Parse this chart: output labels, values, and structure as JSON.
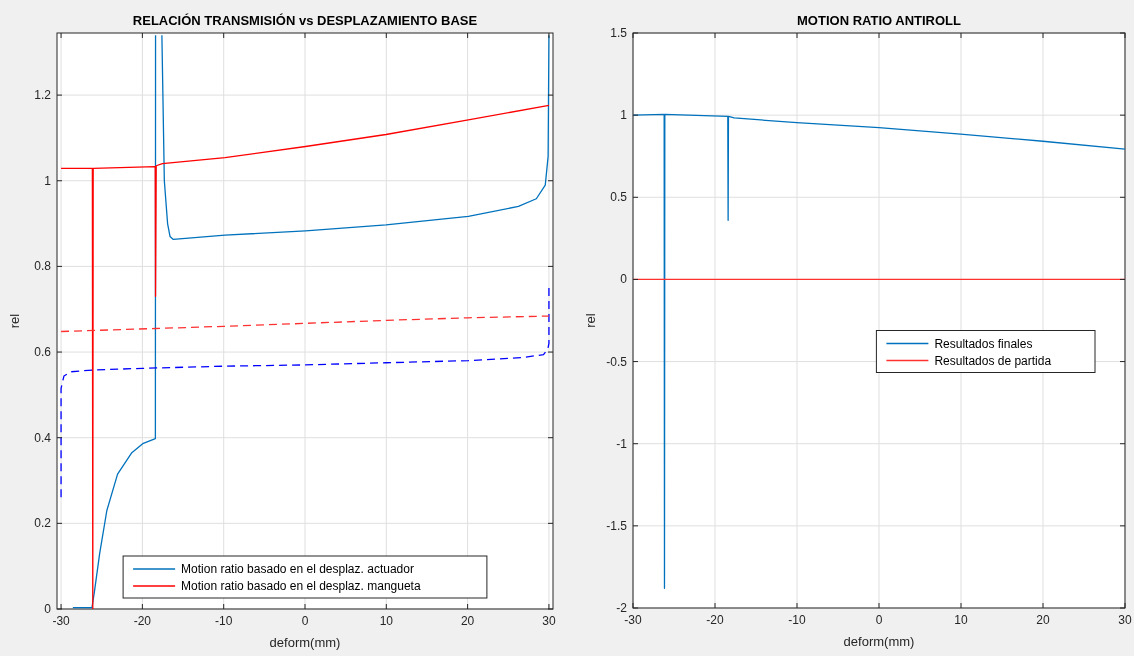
{
  "chart_data": [
    {
      "type": "line",
      "title": "RELACIÓN TRANSMISIÓN vs DESPLAZAMIENTO BASE",
      "xlabel": "deform(mm)",
      "ylabel": "rel",
      "xlim": [
        -30.5,
        30.5
      ],
      "ylim": [
        0,
        1.345
      ],
      "xticks": [
        -30,
        -20,
        -10,
        0,
        10,
        20,
        30
      ],
      "yticks": [
        0,
        0.2,
        0.4,
        0.6,
        0.8,
        1,
        1.2
      ],
      "grid": true,
      "legend": "bottom",
      "series": [
        {
          "name": "Motion ratio basado en el desplaz. actuador",
          "color": "#0072bd",
          "line_style": "solid",
          "x": [
            -28.55,
            -26.2,
            -25.9,
            -25.25,
            -24.37,
            -23.05,
            -21.3,
            -19.96,
            -18.4,
            -18.38,
            -17.9,
            -17.6,
            -17.3,
            -16.9,
            -16.6,
            -16.2,
            -9.84,
            0.06,
            9.96,
            20.09,
            26.25,
            28.45,
            29.55,
            29.9,
            30
          ],
          "values": [
            0.003,
            0.003,
            0.04,
            0.13,
            0.23,
            0.315,
            0.365,
            0.386,
            0.398,
            1.34,
            null,
            1.34,
            1.0,
            0.9,
            0.87,
            0.863,
            0.873,
            0.883,
            0.897,
            0.917,
            0.94,
            0.958,
            0.99,
            1.057,
            1.34
          ]
        },
        {
          "name": "Motion ratio basado en el desplaz. mangueta",
          "color": "#ff0000",
          "line_style": "solid",
          "x": [
            -30,
            -26.15,
            -26.1,
            -26.05,
            -18.42,
            -18.38,
            -18.3,
            -17.54,
            -9.84,
            0.06,
            9.96,
            20.09,
            30
          ],
          "values": [
            1.029,
            1.029,
            0,
            1.029,
            1.033,
            0.73,
            1.035,
            1.04,
            1.054,
            1.08,
            1.108,
            1.142,
            1.176
          ]
        },
        {
          "color": "#0000ff",
          "line_style": "dashed",
          "x": [
            -30,
            -30,
            -29.65,
            -28.77,
            -26.13,
            -19.96,
            -9.84,
            0.06,
            9.96,
            20.09,
            26.7,
            29.33,
            29.86,
            30,
            30
          ],
          "values": [
            0.261,
            0.515,
            0.544,
            0.554,
            0.558,
            0.562,
            0.567,
            0.57,
            0.575,
            0.58,
            0.587,
            0.594,
            0.607,
            0.62,
            0.75
          ]
        },
        {
          "color": "#ff3030",
          "line_style": "dashed",
          "x": [
            -30,
            -18.4,
            -10,
            0,
            10,
            20,
            30
          ],
          "values": [
            0.648,
            0.655,
            0.66,
            0.667,
            0.674,
            0.68,
            0.684
          ]
        }
      ]
    },
    {
      "type": "line",
      "title": "MOTION RATIO ANTIROLL",
      "xlabel": "deform(mm)",
      "ylabel": "rel",
      "xlim": [
        -30,
        30
      ],
      "ylim": [
        -2,
        1.5
      ],
      "xticks": [
        -30,
        -20,
        -10,
        0,
        10,
        20,
        30
      ],
      "yticks": [
        -2,
        -1.5,
        -1,
        -0.5,
        0,
        0.5,
        1,
        1.5
      ],
      "grid": true,
      "legend": "right",
      "series": [
        {
          "name": "Resultados finales",
          "color": "#0072bd",
          "line_style": "solid",
          "x": [
            -30,
            -26.2,
            -26.16,
            -26.12,
            -18.44,
            -18.4,
            -18.36,
            -17.66,
            -10.03,
            0,
            9.95,
            19.98,
            30
          ],
          "values": [
            1.0,
            1.005,
            -1.88,
            1.005,
            0.993,
            0.36,
            0.993,
            0.983,
            0.954,
            0.924,
            0.884,
            0.841,
            0.793
          ]
        },
        {
          "name": "Resultados de partida",
          "color": "#ff3030",
          "line_style": "solid",
          "x": [
            -30,
            30
          ],
          "values": [
            0,
            0
          ]
        }
      ]
    }
  ]
}
